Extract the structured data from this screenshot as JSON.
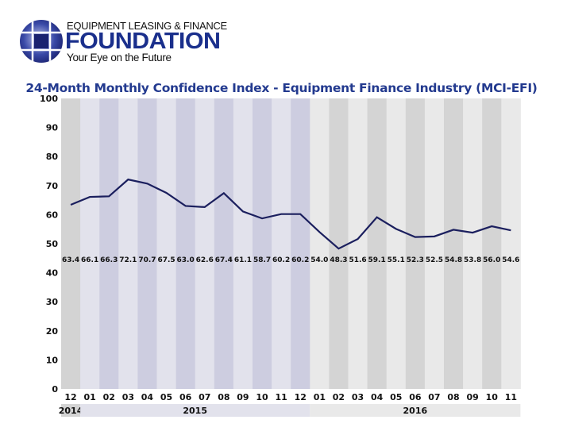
{
  "logo": {
    "line1": "EQUIPMENT LEASING & FINANCE",
    "line2": "FOUNDATION",
    "tagline": "Your Eye on the Future",
    "color": "#1a2f8c"
  },
  "chart_data": {
    "type": "line",
    "title": "24-Month Monthly Confidence Index - Equipment Finance Industry (MCI-EFI)",
    "categories": [
      "12",
      "01",
      "02",
      "03",
      "04",
      "05",
      "06",
      "07",
      "08",
      "09",
      "10",
      "11",
      "12",
      "01",
      "02",
      "03",
      "04",
      "05",
      "06",
      "07",
      "08",
      "09",
      "10",
      "11"
    ],
    "years": [
      {
        "label": "2014",
        "months": 1
      },
      {
        "label": "2015",
        "months": 12
      },
      {
        "label": "2016",
        "months": 11
      }
    ],
    "values": [
      63.4,
      66.1,
      66.3,
      72.1,
      70.7,
      67.5,
      63.0,
      62.6,
      67.4,
      61.1,
      58.7,
      60.2,
      60.2,
      54.0,
      48.3,
      51.6,
      59.1,
      55.1,
      52.3,
      52.5,
      54.8,
      53.8,
      56.0,
      54.6
    ],
    "value_labels": [
      "63.4",
      "66.1",
      "66.3",
      "72.1",
      "70.7",
      "67.5",
      "63.0",
      "62.6",
      "67.4",
      "61.1",
      "58.7",
      "60.2",
      "60.2",
      "54.0",
      "48.3",
      "51.6",
      "59.1",
      "55.1",
      "52.3",
      "52.5",
      "54.8",
      "53.8",
      "56.0",
      "54.6"
    ],
    "ylim": [
      0,
      100
    ],
    "yticks": [
      "0",
      "10",
      "20",
      "30",
      "40",
      "50",
      "60",
      "70",
      "80",
      "90",
      "100"
    ],
    "grid": false,
    "line_color": "#1b1f5e",
    "title_color": "#233a8f"
  }
}
